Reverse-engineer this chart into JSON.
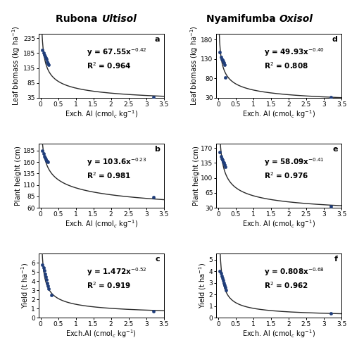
{
  "title_left_normal": "Rubona ",
  "title_left_italic": "Ultisol",
  "title_right_normal": "Nyamifumba ",
  "title_right_italic": "Oxisol",
  "panels": [
    {
      "label": "a",
      "ylabel": "Leaf biomass (kg ha$^{-1}$)",
      "xlabel": "Exch. Al (cmol$_c$ kg$^{-1}$)",
      "eq_text": "y = 67.55x$^{-0.42}$",
      "r2_text": "R$^2$ = 0.964",
      "a": 67.55,
      "b": -0.42,
      "ylim": [
        35,
        250
      ],
      "yticks": [
        35,
        85,
        135,
        185,
        235
      ],
      "xlim": [
        -0.05,
        3.5
      ],
      "xticks": [
        0,
        0.5,
        1,
        1.5,
        2,
        2.5,
        3,
        3.5
      ],
      "data_x": [
        0.05,
        0.08,
        0.1,
        0.12,
        0.14,
        0.16,
        0.18,
        0.2,
        0.22,
        3.2
      ],
      "data_y": [
        195,
        185,
        180,
        175,
        170,
        165,
        155,
        150,
        145,
        38
      ]
    },
    {
      "label": "b",
      "ylabel": "Plant height (cm)",
      "xlabel": "Exch. Al (cmol$_c$ kg$^{-1}$)",
      "eq_text": "y = 103.6x$^{-0.23}$",
      "r2_text": "R$^2$ = 0.981",
      "a": 103.6,
      "b": -0.23,
      "ylim": [
        60,
        200
      ],
      "yticks": [
        60,
        85,
        110,
        135,
        160,
        185
      ],
      "xlim": [
        -0.05,
        3.5
      ],
      "xticks": [
        0,
        0.5,
        1,
        1.5,
        2,
        2.5,
        3,
        3.5
      ],
      "data_x": [
        0.05,
        0.08,
        0.1,
        0.12,
        0.14,
        0.16,
        0.18,
        0.2,
        3.2
      ],
      "data_y": [
        185,
        178,
        173,
        170,
        167,
        164,
        162,
        160,
        83
      ]
    },
    {
      "label": "c",
      "ylabel": "Yield (t ha$^{-1}$)",
      "xlabel": "Exch.Al (cmol$_c$ kg$^{-1}$)",
      "eq_text": "y = 1.472x$^{-0.52}$",
      "r2_text": "R$^2$ = 0.919",
      "a": 1.472,
      "b": -0.52,
      "ylim": [
        0,
        7
      ],
      "yticks": [
        0,
        1,
        2,
        3,
        4,
        5,
        6
      ],
      "xlim": [
        -0.05,
        3.5
      ],
      "xticks": [
        0,
        0.5,
        1,
        1.5,
        2,
        2.5,
        3,
        3.5
      ],
      "data_x": [
        0.05,
        0.08,
        0.1,
        0.12,
        0.14,
        0.16,
        0.18,
        0.2,
        0.22,
        0.3,
        3.2
      ],
      "data_y": [
        5.8,
        5.5,
        5.2,
        4.8,
        4.5,
        4.2,
        3.8,
        3.5,
        3.2,
        2.5,
        0.7
      ]
    },
    {
      "label": "d",
      "ylabel": "Leaf biomass (kg ha$^{-1}$)",
      "xlabel": "Exch. Al (cmol$_c$ kg$^{-1}$)",
      "eq_text": "y = 49.93x$^{-0.40}$",
      "r2_text": "R$^2$ = 0.808",
      "a": 49.93,
      "b": -0.4,
      "ylim": [
        30,
        195
      ],
      "yticks": [
        30,
        80,
        130,
        180
      ],
      "xlim": [
        -0.05,
        3.5
      ],
      "xticks": [
        0,
        0.5,
        1,
        1.5,
        2,
        2.5,
        3,
        3.5
      ],
      "data_x": [
        0.05,
        0.08,
        0.1,
        0.12,
        0.14,
        0.16,
        0.18,
        0.2,
        3.2
      ],
      "data_y": [
        148,
        135,
        130,
        128,
        125,
        120,
        115,
        82,
        32
      ]
    },
    {
      "label": "e",
      "ylabel": "Plant height (cm)",
      "xlabel": "Exch. Al (cmol$_c$ kg$^{-1}$)",
      "eq_text": "y = 58.09x$^{-0.41}$",
      "r2_text": "R$^2$ = 0.976",
      "a": 58.09,
      "b": -0.41,
      "ylim": [
        30,
        180
      ],
      "yticks": [
        30,
        65,
        100,
        135,
        170
      ],
      "xlim": [
        -0.05,
        3.5
      ],
      "xticks": [
        0,
        0.5,
        1,
        1.5,
        2,
        2.5,
        3,
        3.5
      ],
      "data_x": [
        0.05,
        0.08,
        0.1,
        0.12,
        0.14,
        0.16,
        0.18,
        0.2,
        3.2
      ],
      "data_y": [
        160,
        150,
        145,
        142,
        138,
        135,
        130,
        125,
        33
      ]
    },
    {
      "label": "f",
      "ylabel": "Yield (t ha$^{-1}$)",
      "xlabel": "Exch. Al (cmol$_c$ kg$^{-1}$)",
      "eq_text": "y = 0.808x$^{-0.68}$",
      "r2_text": "R$^2$ = 0.962",
      "a": 0.808,
      "b": -0.68,
      "ylim": [
        0,
        5.5
      ],
      "yticks": [
        0,
        1,
        2,
        3,
        4,
        5
      ],
      "xlim": [
        -0.05,
        3.5
      ],
      "xticks": [
        0,
        0.5,
        1,
        1.5,
        2,
        2.5,
        3,
        3.5
      ],
      "data_x": [
        0.05,
        0.08,
        0.1,
        0.12,
        0.14,
        0.16,
        0.18,
        0.2,
        0.22,
        3.2
      ],
      "data_y": [
        4.0,
        3.8,
        3.6,
        3.4,
        3.2,
        3.0,
        2.8,
        2.6,
        2.4,
        0.35
      ]
    }
  ],
  "marker_color": "#1f3d7a",
  "line_color": "#2a2a2a",
  "title_fontsize": 10,
  "label_fontsize": 7,
  "tick_fontsize": 6.5,
  "eq_fontsize": 7.5
}
